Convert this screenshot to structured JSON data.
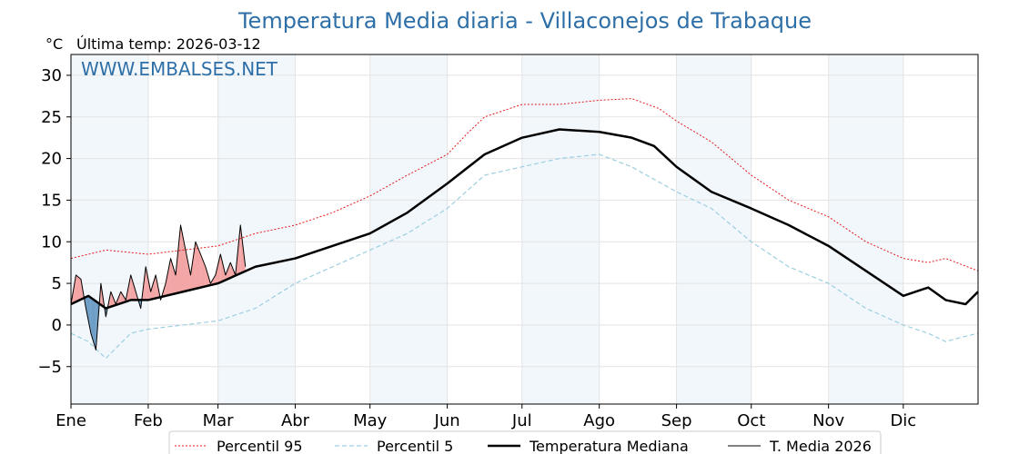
{
  "chart_data": {
    "type": "line",
    "title": "Temperatura Media diaria - Villaconejos de Trabaque",
    "unit_label": "°C",
    "last_temp_label": "Última temp: 2026-03-12",
    "watermark": "WWW.EMBALSES.NET",
    "ylim": [
      -9.5,
      32.5
    ],
    "y_ticks": [
      {
        "label": "30",
        "value": 30
      },
      {
        "label": "25",
        "value": 25
      },
      {
        "label": "20",
        "value": 20
      },
      {
        "label": "15",
        "value": 15
      },
      {
        "label": "10",
        "value": 10
      },
      {
        "label": "5",
        "value": 5
      },
      {
        "label": "0",
        "value": 0
      },
      {
        "label": "−5",
        "value": -5
      }
    ],
    "x_ticks": [
      {
        "label": "Ene",
        "day": 1
      },
      {
        "label": "Feb",
        "day": 32
      },
      {
        "label": "Mar",
        "day": 60
      },
      {
        "label": "Abr",
        "day": 91
      },
      {
        "label": "May",
        "day": 121
      },
      {
        "label": "Jun",
        "day": 152
      },
      {
        "label": "Jul",
        "day": 182
      },
      {
        "label": "Ago",
        "day": 213
      },
      {
        "label": "Sep",
        "day": 244
      },
      {
        "label": "Oct",
        "day": 274
      },
      {
        "label": "Nov",
        "day": 305
      },
      {
        "label": "Dic",
        "day": 335
      }
    ],
    "shaded_months": [
      [
        1,
        32
      ],
      [
        60,
        91
      ],
      [
        121,
        152
      ],
      [
        182,
        213
      ],
      [
        244,
        274
      ],
      [
        305,
        335
      ]
    ],
    "series": [
      {
        "name": "Percentil 95",
        "color": "#e41a1c",
        "style": "dotted",
        "x": [
          1,
          15,
          32,
          46,
          60,
          75,
          91,
          106,
          121,
          136,
          152,
          160,
          167,
          182,
          197,
          213,
          226,
          237,
          244,
          258,
          274,
          289,
          305,
          320,
          335,
          345,
          352,
          365
        ],
        "values": [
          8,
          9,
          8.5,
          9,
          9.5,
          11,
          12,
          13.5,
          15.5,
          18,
          20.5,
          23,
          25,
          26.5,
          26.5,
          27,
          27.2,
          26,
          24.5,
          22,
          18,
          15,
          13,
          10,
          8,
          7.5,
          8,
          6.5
        ]
      },
      {
        "name": "Percentil 5",
        "color": "#9ccfe0",
        "style": "dashed",
        "x": [
          1,
          8,
          15,
          25,
          32,
          46,
          60,
          75,
          91,
          106,
          121,
          136,
          152,
          167,
          182,
          197,
          213,
          226,
          244,
          258,
          274,
          289,
          305,
          320,
          335,
          345,
          352,
          358,
          365
        ],
        "values": [
          -1,
          -2,
          -4,
          -1,
          -0.5,
          0,
          0.5,
          2,
          5,
          7,
          9,
          11,
          14,
          18,
          19,
          20,
          20.5,
          19,
          16,
          14,
          10,
          7,
          5,
          2,
          0,
          -1,
          -2,
          -1.5,
          -1
        ]
      },
      {
        "name": "Temperatura Mediana",
        "color": "#000000",
        "style": "solid-thick",
        "x": [
          1,
          8,
          15,
          25,
          32,
          46,
          60,
          75,
          91,
          106,
          121,
          136,
          152,
          167,
          182,
          197,
          213,
          226,
          235,
          244,
          258,
          274,
          289,
          305,
          320,
          335,
          345,
          352,
          360,
          365
        ],
        "values": [
          2.5,
          3.5,
          2,
          3,
          3,
          4,
          5,
          7,
          8,
          9.5,
          11,
          13.5,
          17,
          20.5,
          22.5,
          23.5,
          23.2,
          22.5,
          21.5,
          19,
          16,
          14,
          12,
          9.5,
          6.5,
          3.5,
          4.5,
          3,
          2.5,
          4
        ]
      },
      {
        "name": "T. Media 2026",
        "color": "#000000",
        "style": "solid-thin",
        "x": [
          1,
          3,
          5,
          7,
          9,
          11,
          13,
          15,
          17,
          19,
          21,
          23,
          25,
          27,
          29,
          31,
          33,
          35,
          37,
          39,
          41,
          43,
          45,
          47,
          49,
          51,
          53,
          55,
          57,
          59,
          61,
          63,
          65,
          67,
          69,
          71
        ],
        "values": [
          2.5,
          6,
          5.5,
          2,
          -1,
          -3,
          5,
          1,
          4,
          2.5,
          4,
          3,
          6,
          4,
          2,
          7,
          4,
          6,
          3,
          5,
          8,
          6,
          12,
          9,
          6,
          10,
          8.5,
          7,
          5,
          6,
          8.5,
          6,
          7.5,
          6,
          12,
          7
        ]
      }
    ],
    "legend": [
      {
        "label": "Percentil 95",
        "style": "dotted",
        "color": "#e41a1c"
      },
      {
        "label": "Percentil 5",
        "style": "dashed",
        "color": "#9ccfe0"
      },
      {
        "label": "Temperatura Mediana",
        "style": "solid-thick",
        "color": "#000000"
      },
      {
        "label": "T. Media 2026",
        "style": "solid-thin",
        "color": "#000000"
      }
    ],
    "legend_position": "bottom-center",
    "fill_above_color": "#f4a6a6",
    "fill_below_color": "#6f9fc6",
    "grid": true
  }
}
